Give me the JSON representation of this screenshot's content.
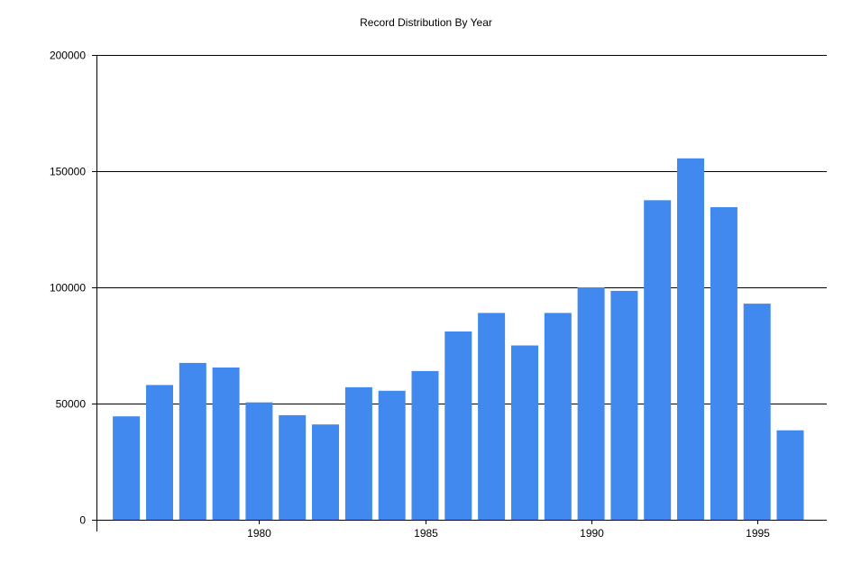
{
  "chart_data": {
    "type": "bar",
    "title": "Record Distribution By Year",
    "xlabel": "",
    "ylabel": "",
    "x": [
      1976,
      1977,
      1978,
      1979,
      1980,
      1981,
      1982,
      1983,
      1984,
      1985,
      1986,
      1987,
      1988,
      1989,
      1990,
      1991,
      1992,
      1993,
      1994,
      1995,
      1996
    ],
    "values": [
      44500,
      58000,
      67500,
      65500,
      50500,
      45000,
      41000,
      57000,
      55500,
      64000,
      81000,
      89000,
      75000,
      89000,
      100000,
      98500,
      137500,
      155500,
      134500,
      93000,
      38500
    ],
    "ylim": [
      0,
      200000
    ],
    "xlim": [
      1975.1,
      1997.1
    ],
    "yticks": [
      0,
      50000,
      100000,
      150000,
      200000
    ],
    "ytick_labels": [
      "0",
      "50000",
      "100000",
      "150000",
      "200000"
    ],
    "xticks": [
      1980,
      1985,
      1990,
      1995
    ],
    "xtick_labels": [
      "1980",
      "1985",
      "1990",
      "1995"
    ],
    "grid": "horizontal",
    "legend": "none",
    "bar_color": "#4189EE"
  }
}
